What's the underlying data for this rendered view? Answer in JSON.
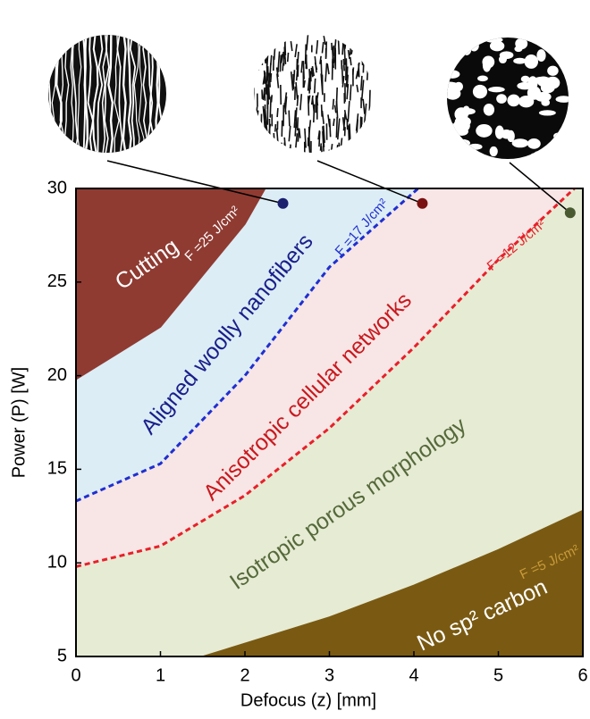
{
  "chart_data": {
    "type": "phase",
    "xlabel": "Defocus (z) [mm]",
    "ylabel": "Power (P) [W]",
    "xlim": [
      0,
      6
    ],
    "ylim": [
      5,
      30
    ],
    "xticks": [
      0,
      1,
      2,
      3,
      4,
      5,
      6
    ],
    "yticks": [
      5,
      10,
      15,
      20,
      25,
      30
    ],
    "background": "#e6ebd4",
    "regions": [
      {
        "label": "Isotropic porous morphology",
        "color": "#55693a"
      },
      {
        "label": "Anisotropic cellular networks",
        "color": "#c8191e"
      },
      {
        "label": "Aligned woolly nanofibers",
        "color": "#1a1f8a"
      },
      {
        "label": "Cutting",
        "color": "#ffffff"
      },
      {
        "label": "No sp² carbon",
        "color": "#ffffff"
      }
    ],
    "boundaries": [
      {
        "label": "F =12 J/cm²",
        "color": "#e8202a",
        "fill": "#f8e5e5",
        "side": "above",
        "dashed": true,
        "x": [
          0,
          1,
          2,
          3,
          4,
          5,
          5.9
        ],
        "y": [
          9.8,
          10.9,
          13.6,
          17.2,
          21.5,
          26.2,
          30
        ]
      },
      {
        "label": "F =17 J/cm²",
        "color": "#1f2fd0",
        "fill": "#dcedf6",
        "side": "above",
        "dashed": true,
        "x": [
          0,
          1,
          2,
          3,
          4.05
        ],
        "y": [
          13.3,
          15.3,
          20,
          25.8,
          30
        ]
      },
      {
        "label": "F =25 J/cm²",
        "color": "#8f3b32",
        "fill": "#8f3b32",
        "side": "above",
        "dashed": false,
        "x": [
          0,
          1,
          2,
          2.24
        ],
        "y": [
          19.8,
          22.6,
          28.1,
          30
        ]
      },
      {
        "label": "F =5 J/cm²",
        "color": "#7a5a12",
        "fill": "#7a5a12",
        "side": "below",
        "dashed": false,
        "x": [
          1.5,
          2,
          3,
          4,
          5,
          6
        ],
        "y": [
          5,
          5.7,
          7.1,
          8.8,
          10.7,
          12.8
        ]
      }
    ],
    "points": [
      {
        "x": 2.45,
        "y": 29.2,
        "color": "#1a1f6e"
      },
      {
        "x": 4.1,
        "y": 29.2,
        "color": "#7a1010"
      },
      {
        "x": 5.85,
        "y": 28.7,
        "color": "#4a5a30"
      }
    ]
  }
}
